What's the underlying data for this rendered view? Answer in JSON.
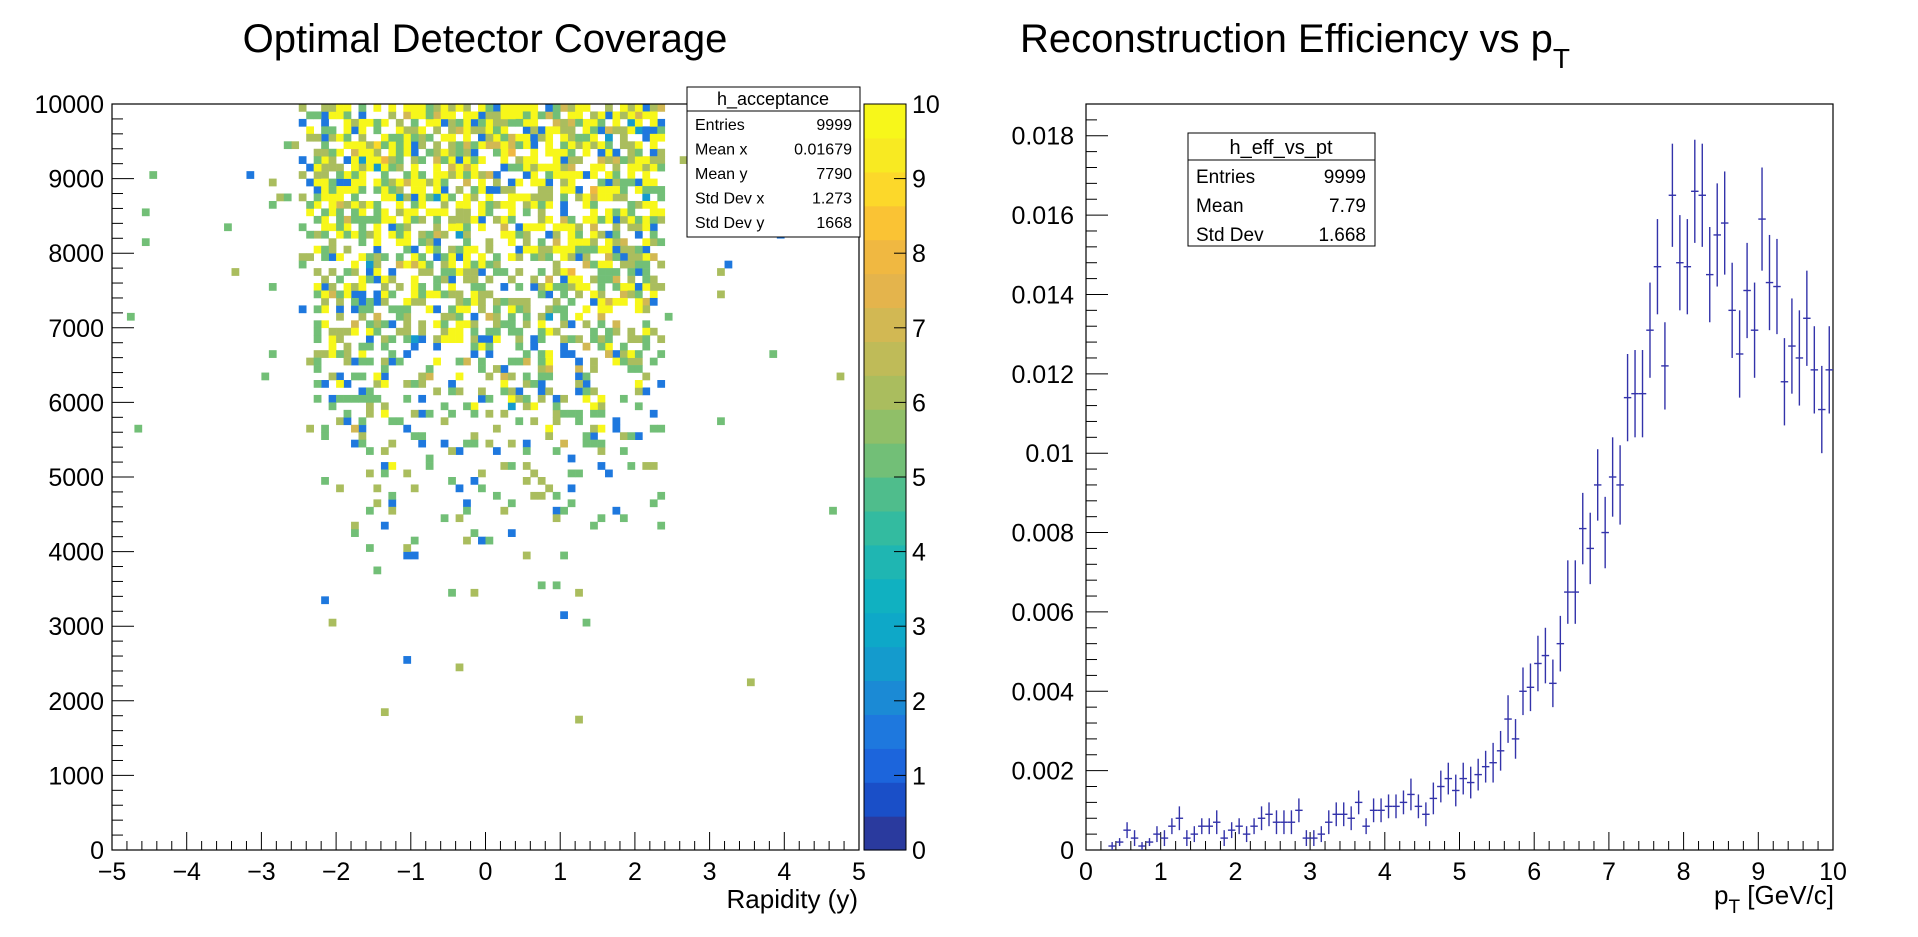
{
  "chart_data": [
    {
      "type": "heatmap",
      "title": "Optimal Detector Coverage",
      "xlabel": "Rapidity (y)",
      "ylabel": "",
      "xlim": [
        -5,
        5
      ],
      "ylim": [
        0,
        10000
      ],
      "x_ticks": [
        "−5",
        "−4",
        "−3",
        "−2",
        "−1",
        "0",
        "1",
        "2",
        "3",
        "4",
        "5"
      ],
      "y_ticks": [
        "0",
        "1000",
        "2000",
        "3000",
        "4000",
        "5000",
        "6000",
        "7000",
        "8000",
        "9000",
        "10000"
      ],
      "z_range": [
        0,
        10
      ],
      "z_ticks": [
        "0",
        "1",
        "2",
        "3",
        "4",
        "5",
        "6",
        "7",
        "8",
        "9",
        "10"
      ],
      "palette": [
        "#2a3a9e",
        "#1a4fc8",
        "#1c65dc",
        "#1e78de",
        "#1b8ad5",
        "#149bcd",
        "#0ea8c8",
        "#10b1c1",
        "#1fb6b2",
        "#33bba0",
        "#4fbd8c",
        "#72bf77",
        "#90bf68",
        "#aabd5e",
        "#bfbb58",
        "#d2b853",
        "#e4b44c",
        "#f0b841",
        "#fac334",
        "#fcd82a",
        "#f8ea22",
        "#f7f71a"
      ],
      "stats": {
        "name": "h_acceptance",
        "rows": [
          {
            "label": "Entries",
            "value": "9999"
          },
          {
            "label": "Mean x",
            "value": "0.01679"
          },
          {
            "label": "Mean y",
            "value": "7790"
          },
          {
            "label": "Std Dev x",
            "value": "1.273"
          },
          {
            "label": "Std Dev y",
            "value": "1668"
          }
        ]
      },
      "bins": {
        "nx": 100,
        "ny": 100
      },
      "entries": 9999,
      "mean_x": 0.01679,
      "mean_y": 7790,
      "std_x": 1.273,
      "std_y": 1668
    },
    {
      "type": "scatter",
      "title": "Reconstruction Efficiency vs p",
      "title_sub": "T",
      "xlabel": "p",
      "xlabel_sub": "T",
      "xlabel_rest": " [GeV/c]",
      "ylabel": "",
      "xlim": [
        0,
        10
      ],
      "ylim": [
        0,
        0.0188
      ],
      "x_ticks": [
        "0",
        "1",
        "2",
        "3",
        "4",
        "5",
        "6",
        "7",
        "8",
        "9",
        "10"
      ],
      "y_ticks": [
        {
          "v": 0,
          "label": "0"
        },
        {
          "v": 0.002,
          "label": "0.002"
        },
        {
          "v": 0.004,
          "label": "0.004"
        },
        {
          "v": 0.006,
          "label": "0.006"
        },
        {
          "v": 0.008,
          "label": "0.008"
        },
        {
          "v": 0.01,
          "label": "0.01"
        },
        {
          "v": 0.012,
          "label": "0.012"
        },
        {
          "v": 0.014,
          "label": "0.014"
        },
        {
          "v": 0.016,
          "label": "0.016"
        },
        {
          "v": 0.018,
          "label": "0.018"
        }
      ],
      "color": "#3333aa",
      "stats": {
        "name": "h_eff_vs_pt",
        "rows": [
          {
            "label": "Entries",
            "value": "9999"
          },
          {
            "label": "Mean",
            "value": "7.79"
          },
          {
            "label": "Std Dev",
            "value": "1.668"
          }
        ]
      },
      "bin_width": 0.1,
      "x": [
        0.35,
        0.45,
        0.55,
        0.65,
        0.75,
        0.85,
        0.95,
        1.05,
        1.15,
        1.25,
        1.35,
        1.45,
        1.55,
        1.65,
        1.75,
        1.85,
        1.95,
        2.05,
        2.15,
        2.25,
        2.35,
        2.45,
        2.55,
        2.65,
        2.75,
        2.85,
        2.95,
        3.05,
        3.15,
        3.25,
        3.35,
        3.45,
        3.55,
        3.65,
        3.75,
        3.85,
        3.95,
        4.05,
        4.15,
        4.25,
        4.35,
        4.45,
        4.55,
        4.65,
        4.75,
        4.85,
        4.95,
        5.05,
        5.15,
        5.25,
        5.35,
        5.45,
        5.55,
        5.65,
        5.75,
        5.85,
        5.95,
        6.05,
        6.15,
        6.25,
        6.35,
        6.45,
        6.55,
        6.65,
        6.75,
        6.85,
        6.95,
        7.05,
        7.15,
        7.25,
        7.35,
        7.45,
        7.55,
        7.65,
        7.75,
        7.85,
        7.95,
        8.05,
        8.15,
        8.25,
        8.35,
        8.45,
        8.55,
        8.65,
        8.75,
        8.85,
        8.95,
        9.05,
        9.15,
        9.25,
        9.35,
        9.45,
        9.55,
        9.65,
        9.75,
        9.85,
        9.95
      ],
      "y": [
        0.0001,
        0.0002,
        0.0005,
        0.0003,
        0.0001,
        0.0002,
        0.0004,
        0.0003,
        0.0006,
        0.0008,
        0.0003,
        0.0004,
        0.0006,
        0.0006,
        0.0007,
        0.0003,
        0.0005,
        0.0006,
        0.0004,
        0.0006,
        0.0008,
        0.0009,
        0.0007,
        0.0007,
        0.0007,
        0.001,
        0.0003,
        0.0003,
        0.0004,
        0.0007,
        0.0009,
        0.0009,
        0.0008,
        0.0012,
        0.0006,
        0.001,
        0.001,
        0.0011,
        0.0011,
        0.0012,
        0.0014,
        0.0011,
        0.0009,
        0.0013,
        0.0016,
        0.0018,
        0.0015,
        0.0018,
        0.0017,
        0.0019,
        0.0021,
        0.0022,
        0.0025,
        0.0033,
        0.0028,
        0.004,
        0.0041,
        0.0047,
        0.0049,
        0.0042,
        0.0052,
        0.0065,
        0.0065,
        0.0081,
        0.0076,
        0.0092,
        0.008,
        0.0094,
        0.0092,
        0.0114,
        0.0115,
        0.0115,
        0.0131,
        0.0147,
        0.0122,
        0.0165,
        0.0148,
        0.0147,
        0.0166,
        0.0165,
        0.0145,
        0.0155,
        0.0158,
        0.0136,
        0.0125,
        0.0141,
        0.0131,
        0.0159,
        0.0143,
        0.0142,
        0.0118,
        0.0127,
        0.0124,
        0.0134,
        0.0121,
        0.0111,
        0.0121
      ],
      "yerr": [
        0.0001,
        0.0001,
        0.0002,
        0.0002,
        0.0001,
        0.0001,
        0.0002,
        0.0002,
        0.0002,
        0.0003,
        0.0002,
        0.0002,
        0.0002,
        0.0002,
        0.0003,
        0.0002,
        0.0002,
        0.0002,
        0.0002,
        0.0002,
        0.0003,
        0.0003,
        0.0003,
        0.0003,
        0.0003,
        0.0003,
        0.0002,
        0.0002,
        0.0002,
        0.0003,
        0.0003,
        0.0003,
        0.0003,
        0.0003,
        0.0002,
        0.0003,
        0.0003,
        0.0003,
        0.0003,
        0.0003,
        0.0004,
        0.0003,
        0.0003,
        0.0004,
        0.0004,
        0.0004,
        0.0004,
        0.0004,
        0.0004,
        0.0004,
        0.0004,
        0.0005,
        0.0005,
        0.0006,
        0.0005,
        0.0006,
        0.0006,
        0.0007,
        0.0007,
        0.0006,
        0.0007,
        0.0008,
        0.0008,
        0.0009,
        0.0009,
        0.0009,
        0.0009,
        0.001,
        0.001,
        0.0011,
        0.0011,
        0.0011,
        0.0012,
        0.0012,
        0.0011,
        0.0013,
        0.0012,
        0.0012,
        0.0013,
        0.0013,
        0.0012,
        0.0013,
        0.0013,
        0.0012,
        0.0011,
        0.0012,
        0.0012,
        0.0013,
        0.0012,
        0.0012,
        0.0011,
        0.0012,
        0.0012,
        0.0012,
        0.0011,
        0.0011,
        0.0011
      ]
    }
  ]
}
